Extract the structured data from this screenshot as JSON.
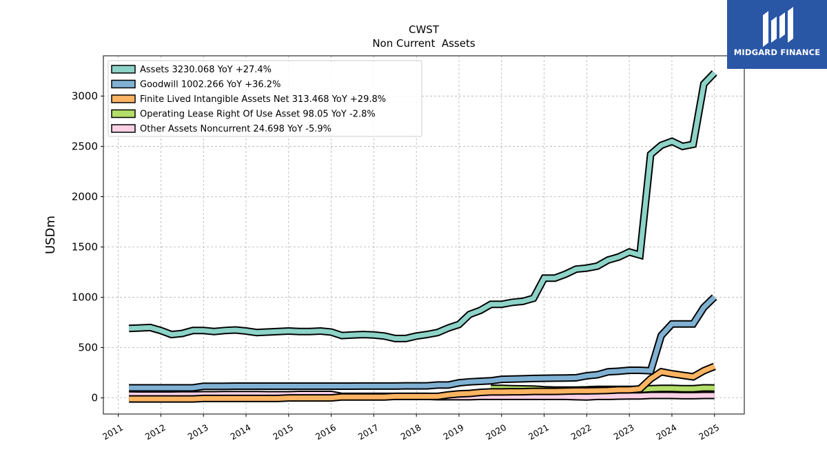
{
  "brand": {
    "name": "MIDGARD FINANCE",
    "bg_color": "#2a56a6"
  },
  "chart_data": {
    "type": "line",
    "title": "CWST",
    "subtitle": "Non Current  Assets",
    "ylabel": "USDm",
    "xlabel": "",
    "xlim": [
      2010.65,
      2025.7
    ],
    "ylim": [
      -160,
      3400
    ],
    "yticks": [
      0,
      500,
      1000,
      1500,
      2000,
      2500,
      3000
    ],
    "xticks": [
      2011,
      2012,
      2013,
      2014,
      2015,
      2016,
      2017,
      2018,
      2019,
      2020,
      2021,
      2022,
      2023,
      2024,
      2025
    ],
    "grid": true,
    "legend_position": "top-left",
    "series": [
      {
        "name": "Assets  3230.068 YoY +27.4%",
        "color": "#8dd3c7",
        "x": [
          2011.25,
          2011.5,
          2011.75,
          2012.0,
          2012.25,
          2012.5,
          2012.75,
          2013.0,
          2013.25,
          2013.5,
          2013.75,
          2014.0,
          2014.25,
          2014.5,
          2014.75,
          2015.0,
          2015.25,
          2015.5,
          2015.75,
          2016.0,
          2016.25,
          2016.5,
          2016.75,
          2017.0,
          2017.25,
          2017.5,
          2017.75,
          2018.0,
          2018.25,
          2018.5,
          2018.75,
          2019.0,
          2019.25,
          2019.5,
          2019.75,
          2020.0,
          2020.25,
          2020.5,
          2020.75,
          2021.0,
          2021.25,
          2021.5,
          2021.75,
          2022.0,
          2022.25,
          2022.5,
          2022.75,
          2023.0,
          2023.25,
          2023.5,
          2023.75,
          2024.0,
          2024.25,
          2024.5,
          2024.75,
          2025.0
        ],
        "values": [
          690,
          695,
          700,
          670,
          630,
          640,
          670,
          670,
          660,
          670,
          675,
          665,
          650,
          655,
          660,
          665,
          660,
          660,
          665,
          655,
          620,
          625,
          630,
          625,
          615,
          590,
          590,
          615,
          630,
          650,
          695,
          730,
          830,
          870,
          930,
          930,
          950,
          960,
          990,
          1190,
          1190,
          1230,
          1280,
          1290,
          1310,
          1370,
          1400,
          1450,
          1420,
          2420,
          2510,
          2550,
          2500,
          2520,
          3120,
          3230
        ]
      },
      {
        "name": "Goodwill  1002.266 YoY +36.2%",
        "color": "#80b1d3",
        "x": [
          2011.25,
          2011.5,
          2011.75,
          2012.0,
          2012.25,
          2012.5,
          2012.75,
          2013.0,
          2013.25,
          2013.5,
          2013.75,
          2014.0,
          2014.25,
          2014.5,
          2014.75,
          2015.0,
          2015.25,
          2015.5,
          2015.75,
          2016.0,
          2016.25,
          2016.5,
          2016.75,
          2017.0,
          2017.25,
          2017.5,
          2017.75,
          2018.0,
          2018.25,
          2018.5,
          2018.75,
          2019.0,
          2019.25,
          2019.5,
          2019.75,
          2020.0,
          2020.25,
          2020.5,
          2020.75,
          2021.0,
          2021.25,
          2021.5,
          2021.75,
          2022.0,
          2022.25,
          2022.5,
          2022.75,
          2023.0,
          2023.25,
          2023.5,
          2023.75,
          2024.0,
          2024.25,
          2024.5,
          2024.75,
          2025.0
        ],
        "values": [
          100,
          100,
          100,
          100,
          100,
          100,
          100,
          115,
          115,
          115,
          117,
          117,
          117,
          117,
          117,
          117,
          117,
          117,
          117,
          117,
          117,
          117,
          118,
          118,
          118,
          118,
          120,
          120,
          120,
          128,
          128,
          150,
          160,
          165,
          170,
          185,
          188,
          190,
          193,
          195,
          197,
          198,
          200,
          220,
          230,
          260,
          265,
          275,
          275,
          270,
          620,
          735,
          735,
          735,
          900,
          1002
        ]
      },
      {
        "name": "Finite Lived Intangible Assets Net  313.468 YoY +29.8%",
        "color": "#fdb462",
        "x": [
          2011.25,
          2011.5,
          2011.75,
          2012.0,
          2012.25,
          2012.5,
          2012.75,
          2013.0,
          2013.25,
          2013.5,
          2013.75,
          2014.0,
          2014.25,
          2014.5,
          2014.75,
          2015.0,
          2015.25,
          2015.5,
          2015.75,
          2016.0,
          2016.25,
          2016.5,
          2016.75,
          2017.0,
          2017.25,
          2017.5,
          2017.75,
          2018.0,
          2018.25,
          2018.5,
          2018.75,
          2019.0,
          2019.25,
          2019.5,
          2019.75,
          2020.0,
          2020.25,
          2020.5,
          2020.75,
          2021.0,
          2021.25,
          2021.5,
          2021.75,
          2022.0,
          2022.25,
          2022.5,
          2022.75,
          2023.0,
          2023.25,
          2023.5,
          2023.75,
          2024.0,
          2024.25,
          2024.5,
          2024.75,
          2025.0
        ],
        "values": [
          -10,
          -10,
          -10,
          -10,
          -10,
          -10,
          -10,
          -5,
          -5,
          -5,
          -5,
          -5,
          -5,
          -5,
          -5,
          0,
          0,
          0,
          0,
          0,
          10,
          10,
          10,
          10,
          10,
          15,
          15,
          15,
          15,
          15,
          30,
          40,
          45,
          55,
          60,
          60,
          62,
          62,
          65,
          65,
          65,
          68,
          70,
          70,
          72,
          75,
          80,
          80,
          90,
          190,
          260,
          240,
          225,
          210,
          270,
          313
        ]
      },
      {
        "name": "Operating Lease Right Of Use Asset  98.05 YoY -2.8%",
        "color": "#b3de69",
        "x": [
          2019.75,
          2020.0,
          2020.25,
          2020.5,
          2020.75,
          2021.0,
          2021.25,
          2021.5,
          2021.75,
          2022.0,
          2022.25,
          2022.5,
          2022.75,
          2023.0,
          2023.25,
          2023.5,
          2023.75,
          2024.0,
          2024.25,
          2024.5,
          2024.75,
          2025.0
        ],
        "values": [
          95,
          95,
          92,
          90,
          88,
          82,
          78,
          78,
          78,
          80,
          85,
          85,
          85,
          85,
          85,
          92,
          95,
          95,
          92,
          92,
          100,
          98
        ]
      },
      {
        "name": "Other Assets Noncurrent  24.698 YoY -5.9%",
        "color": "#fcd0e4",
        "x": [
          2011.25,
          2011.5,
          2011.75,
          2012.0,
          2012.25,
          2012.5,
          2012.75,
          2013.0,
          2013.25,
          2013.5,
          2013.75,
          2014.0,
          2014.25,
          2014.5,
          2014.75,
          2015.0,
          2015.25,
          2015.5,
          2015.75,
          2016.0,
          2016.25,
          2016.5,
          2016.75,
          2017.0,
          2017.25,
          2017.5,
          2017.75,
          2018.0,
          2018.25,
          2018.5,
          2018.75,
          2019.0,
          2019.25,
          2019.5,
          2019.75,
          2020.0,
          2020.25,
          2020.5,
          2020.75,
          2021.0,
          2021.25,
          2021.5,
          2021.75,
          2022.0,
          2022.25,
          2022.5,
          2022.75,
          2023.0,
          2023.25,
          2023.5,
          2023.75,
          2024.0,
          2024.25,
          2024.5,
          2024.75,
          2025.0
        ],
        "values": [
          30,
          28,
          28,
          28,
          28,
          30,
          30,
          32,
          32,
          33,
          33,
          33,
          33,
          32,
          32,
          32,
          35,
          35,
          35,
          35,
          15,
          15,
          15,
          15,
          15,
          15,
          15,
          15,
          15,
          12,
          12,
          12,
          12,
          15,
          15,
          15,
          15,
          15,
          15,
          15,
          15,
          15,
          12,
          10,
          15,
          15,
          18,
          20,
          20,
          25,
          25,
          25,
          22,
          22,
          25,
          25
        ]
      }
    ]
  }
}
